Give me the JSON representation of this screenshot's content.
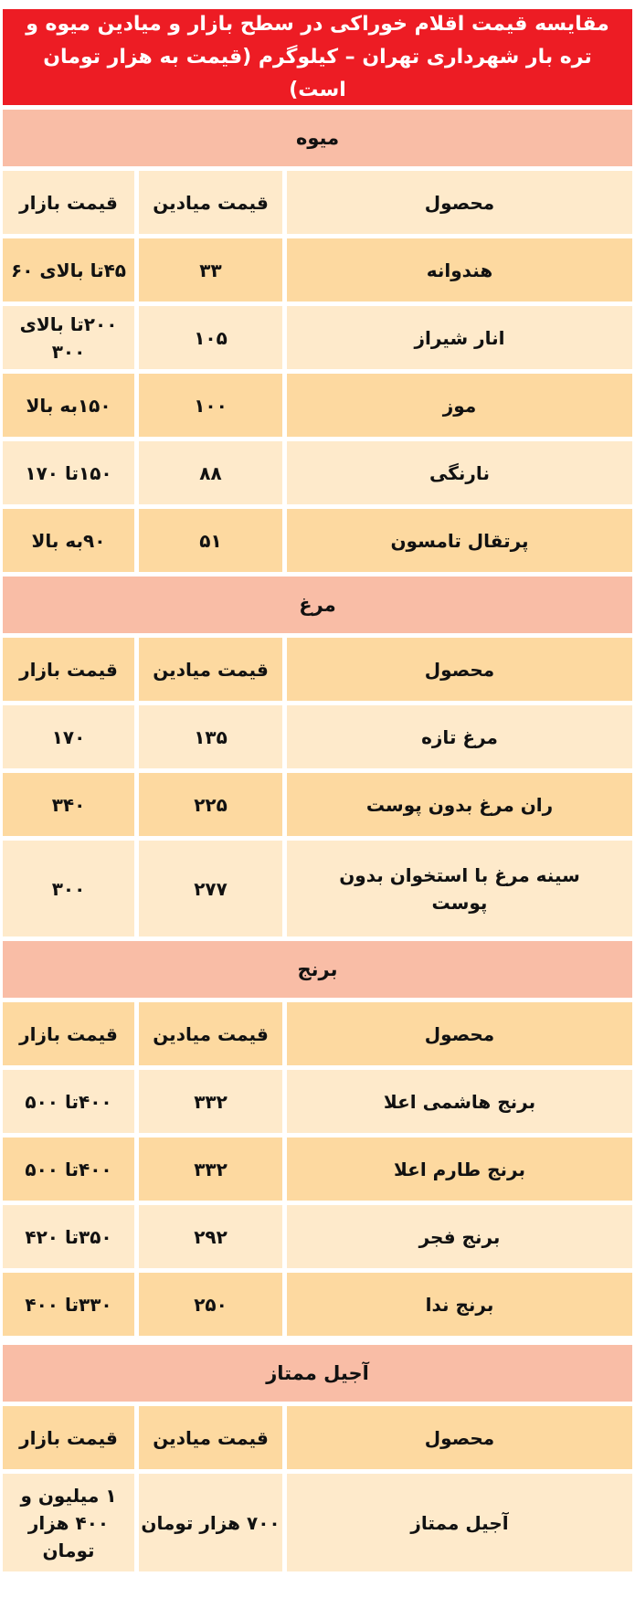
{
  "title": "مقایسه قیمت اقلام خوراکی در سطح بازار و میادین میوه و تره بار شهرداری تهران – کیلوگرم (قیمت به هزار تومان است)",
  "columns": {
    "product": "محصول",
    "field_price": "قیمت میادین",
    "market_price": "قیمت بازار"
  },
  "colors": {
    "title_bg": "#ED1C24",
    "section_bg": "#F9BDA6",
    "row_light": "#FEEACB",
    "row_dark": "#FDD9A0"
  },
  "sections": [
    {
      "name": "میوه",
      "rows": [
        {
          "product": "هندوانه",
          "field": "۳۳",
          "market": "۴۵تا بالای ۶۰"
        },
        {
          "product": "انار شیراز",
          "field": "۱۰۵",
          "market": "۲۰۰تا بالای ۳۰۰"
        },
        {
          "product": "موز",
          "field": "۱۰۰",
          "market": "۱۵۰به بالا"
        },
        {
          "product": "نارنگی",
          "field": "۸۸",
          "market": "۱۵۰تا ۱۷۰"
        },
        {
          "product": "پرتقال تامسون",
          "field": "۵۱",
          "market": "۹۰به بالا"
        }
      ]
    },
    {
      "name": "مرغ",
      "rows": [
        {
          "product": "مرغ تازه",
          "field": "۱۳۵",
          "market": "۱۷۰"
        },
        {
          "product": "ران مرغ بدون پوست",
          "field": "۲۲۵",
          "market": "۳۴۰"
        },
        {
          "product": "سینه مرغ با استخوان بدون پوست",
          "field": "۲۷۷",
          "market": "۳۰۰"
        }
      ]
    },
    {
      "name": "برنج",
      "rows": [
        {
          "product": "برنج هاشمی اعلا",
          "field": "۳۳۲",
          "market": "۴۰۰تا ۵۰۰"
        },
        {
          "product": "برنج طارم اعلا",
          "field": "۳۳۲",
          "market": "۴۰۰تا ۵۰۰"
        },
        {
          "product": "برنج فجر",
          "field": "۲۹۲",
          "market": "۳۵۰تا ۴۲۰"
        },
        {
          "product": "برنج ندا",
          "field": "۲۵۰",
          "market": "۳۳۰تا ۴۰۰"
        }
      ]
    },
    {
      "name": "آجیل ممتاز",
      "rows": [
        {
          "product": "آجیل ممتاز",
          "field": "۷۰۰ هزار تومان",
          "market": "۱ میلیون و ۴۰۰ هزار تومان"
        }
      ]
    }
  ]
}
